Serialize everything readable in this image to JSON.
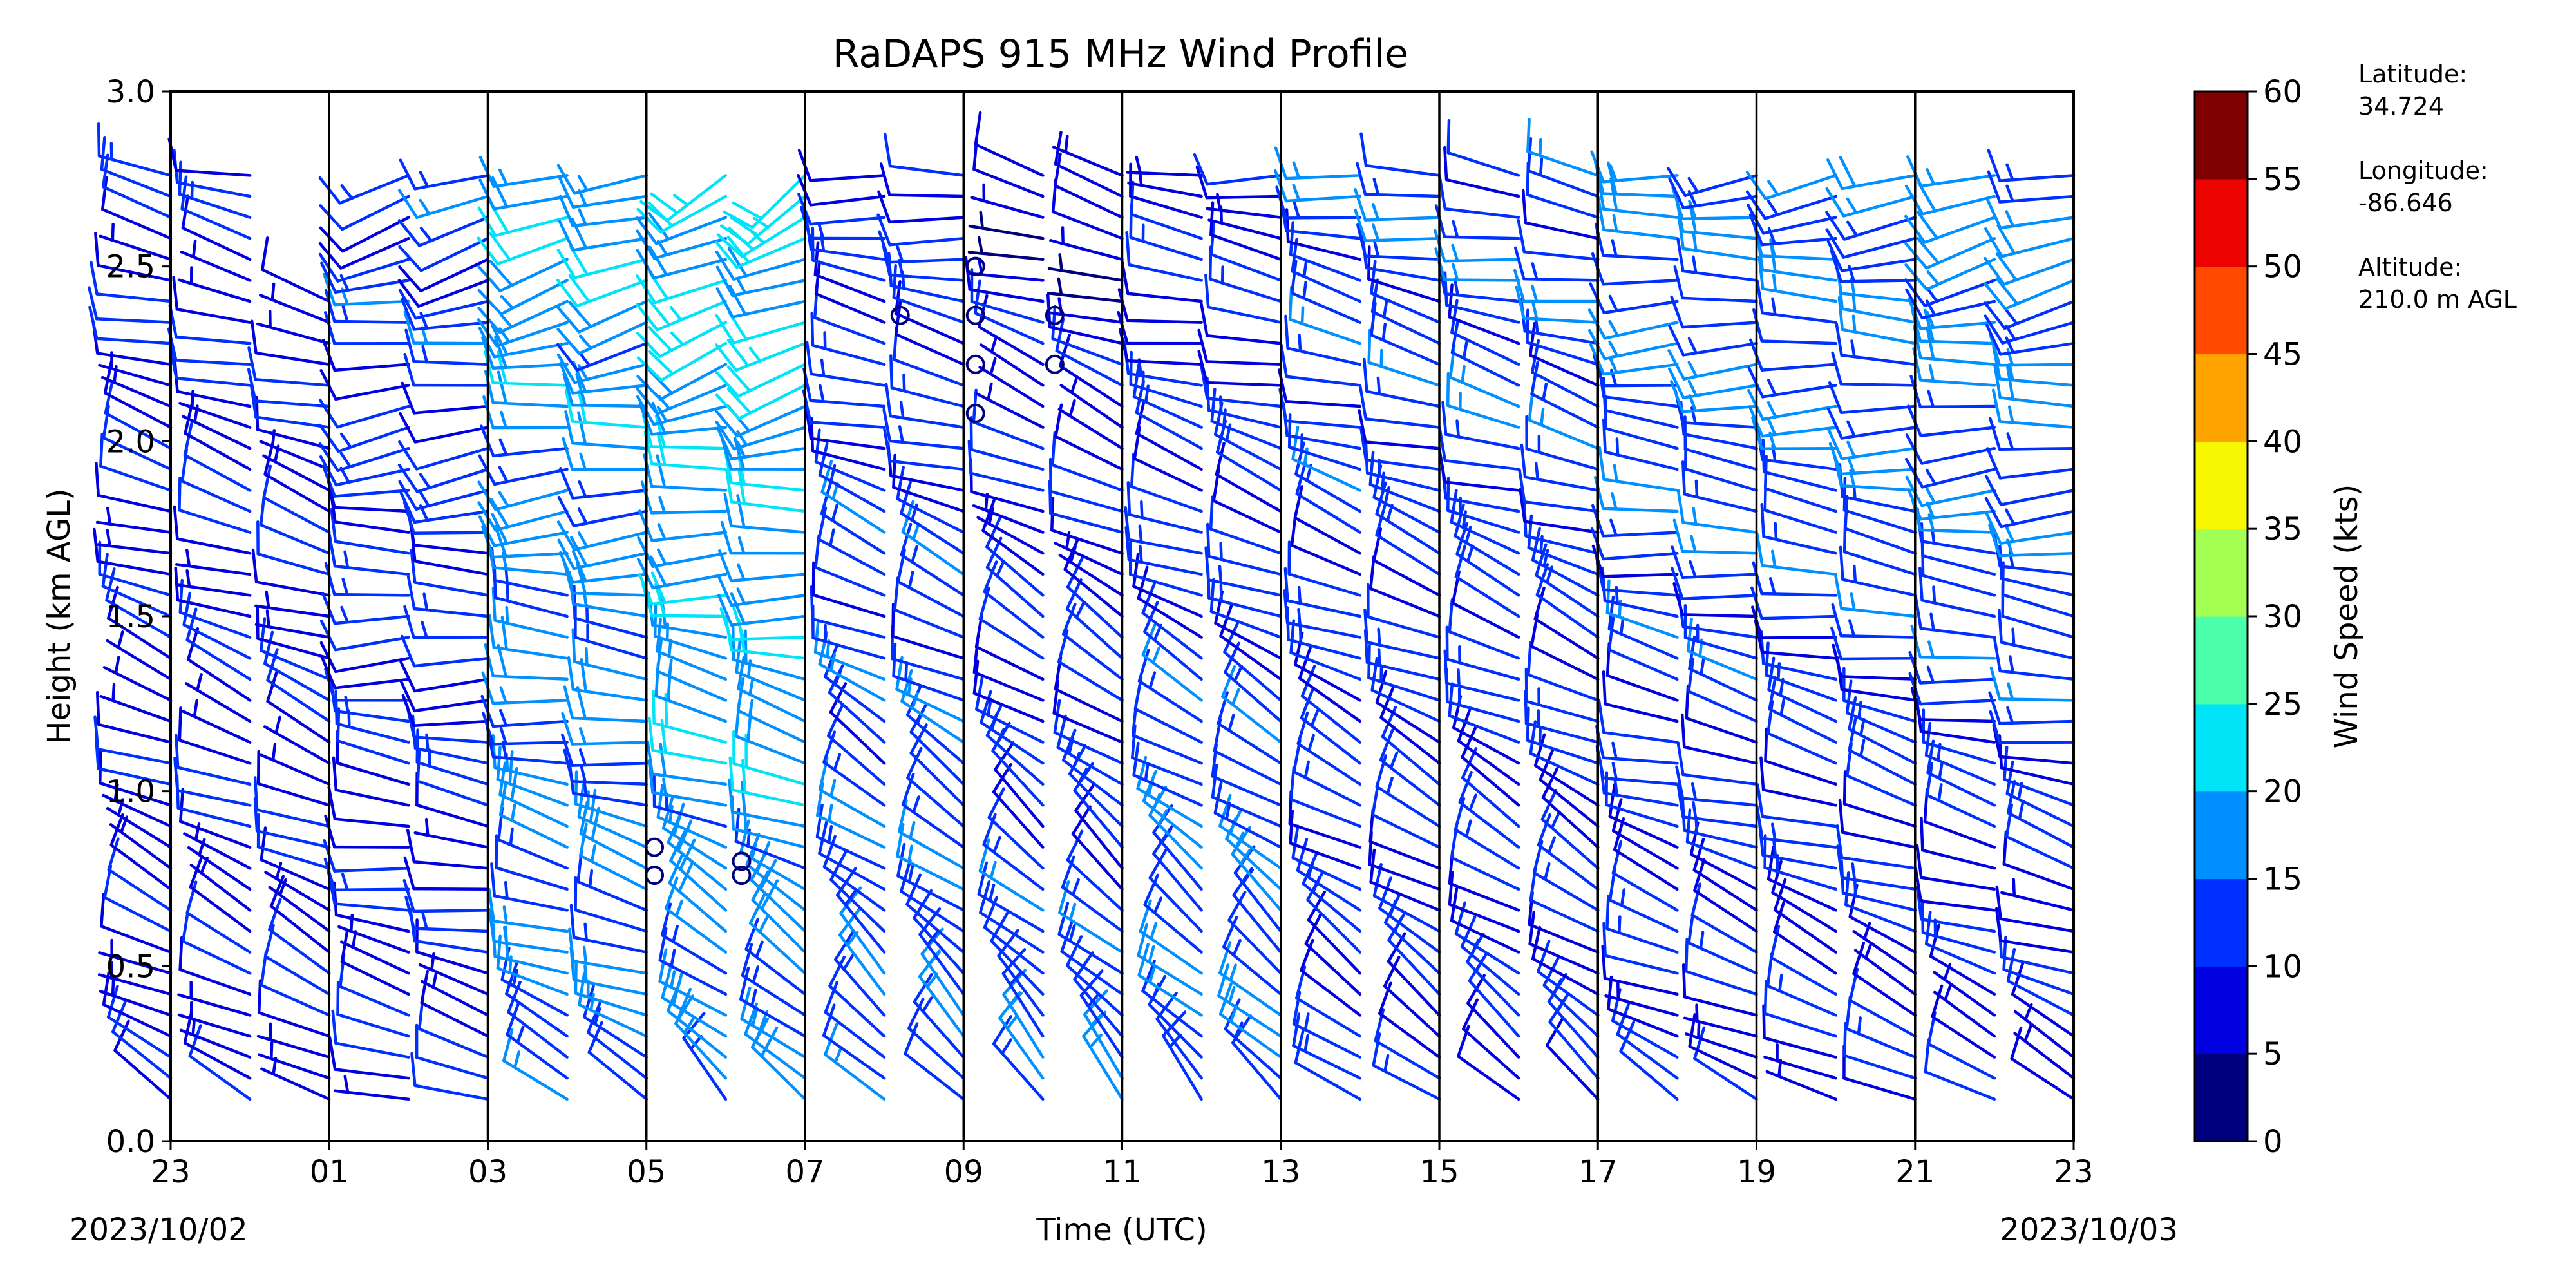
{
  "chart_data": {
    "type": "wind-barb-profile",
    "title": "RaDAPS 915 MHz Wind Profile",
    "xlabel": "Time (UTC)",
    "ylabel": "Height (km AGL)",
    "colorbar_label": "Wind Speed (kts)",
    "start_date_label": "2023/10/02",
    "end_date_label": "2023/10/03",
    "x_tick_labels": [
      "23",
      "01",
      "03",
      "05",
      "07",
      "09",
      "11",
      "13",
      "15",
      "17",
      "19",
      "21",
      "23"
    ],
    "x_range_hours": [
      23,
      47
    ],
    "ylim": [
      0.0,
      3.0
    ],
    "y_ticks": [
      "0.0",
      "0.5",
      "1.0",
      "1.5",
      "2.0",
      "2.5",
      "3.0"
    ],
    "colorbar_ticks": [
      "0",
      "5",
      "10",
      "15",
      "20",
      "25",
      "30",
      "35",
      "40",
      "45",
      "50",
      "55",
      "60"
    ],
    "colorbar_colors": [
      "#00007f",
      "#0000e0",
      "#0030ff",
      "#0090ff",
      "#00e4f8",
      "#4cffaa",
      "#a4ff53",
      "#f6f700",
      "#ffa300",
      "#ff4a00",
      "#ed0400",
      "#7f0000"
    ],
    "profile_times_hours": [
      23,
      24,
      25,
      26,
      27,
      28,
      29,
      30,
      31,
      32,
      33,
      34,
      35,
      36,
      37,
      38,
      39,
      40,
      41,
      42,
      43,
      44,
      45,
      46,
      47
    ],
    "range_gates_km": {
      "start": 0.12,
      "step": 0.06,
      "count": 45
    },
    "max_height_km_by_profile": [
      2.95,
      2.95,
      2.45,
      2.95,
      2.95,
      2.95,
      2.95,
      2.95,
      2.95,
      2.95,
      2.95,
      2.95,
      2.95,
      2.95,
      2.95,
      2.95,
      2.95,
      2.95,
      2.95,
      2.95,
      2.95,
      2.95,
      2.95,
      2.95,
      2.95
    ],
    "calm_markers": [
      {
        "time_hour": 29.1,
        "height_km": 0.84
      },
      {
        "time_hour": 29.1,
        "height_km": 0.76
      },
      {
        "time_hour": 30.2,
        "height_km": 0.8
      },
      {
        "time_hour": 30.2,
        "height_km": 0.76
      },
      {
        "time_hour": 32.2,
        "height_km": 2.36
      },
      {
        "time_hour": 33.15,
        "height_km": 2.5
      },
      {
        "time_hour": 33.15,
        "height_km": 2.36
      },
      {
        "time_hour": 33.15,
        "height_km": 2.22
      },
      {
        "time_hour": 33.15,
        "height_km": 2.08
      },
      {
        "time_hour": 34.15,
        "height_km": 2.36
      },
      {
        "time_hour": 34.15,
        "height_km": 2.22
      }
    ],
    "segments": [
      {
        "from_hour": 23,
        "to_hour": 25,
        "low_speed_kts": 8,
        "high_speed_kts": 10,
        "low_dir_deg": 300,
        "high_dir_deg": 280
      },
      {
        "from_hour": 25,
        "to_hour": 27,
        "low_speed_kts": 9,
        "high_speed_kts": 13,
        "low_dir_deg": 290,
        "high_dir_deg": 250
      },
      {
        "from_hour": 27,
        "to_hour": 29,
        "low_speed_kts": 14,
        "high_speed_kts": 19,
        "low_dir_deg": 300,
        "high_dir_deg": 245
      },
      {
        "from_hour": 29,
        "to_hour": 31,
        "low_speed_kts": 16,
        "high_speed_kts": 21,
        "low_dir_deg": 320,
        "high_dir_deg": 230
      },
      {
        "from_hour": 31,
        "to_hour": 33,
        "low_speed_kts": 14,
        "high_speed_kts": 11,
        "low_dir_deg": 320,
        "high_dir_deg": 270
      },
      {
        "from_hour": 33,
        "to_hour": 35,
        "low_speed_kts": 14,
        "high_speed_kts": 6,
        "low_dir_deg": 320,
        "high_dir_deg": 280
      },
      {
        "from_hour": 35,
        "to_hour": 37,
        "low_speed_kts": 15,
        "high_speed_kts": 9,
        "low_dir_deg": 320,
        "high_dir_deg": 270
      },
      {
        "from_hour": 37,
        "to_hour": 41,
        "low_speed_kts": 11,
        "high_speed_kts": 13,
        "low_dir_deg": 310,
        "high_dir_deg": 275
      },
      {
        "from_hour": 41,
        "to_hour": 45,
        "low_speed_kts": 9,
        "high_speed_kts": 16,
        "low_dir_deg": 300,
        "high_dir_deg": 260
      },
      {
        "from_hour": 45,
        "to_hour": 47,
        "low_speed_kts": 8,
        "high_speed_kts": 18,
        "low_dir_deg": 300,
        "high_dir_deg": 250
      }
    ]
  },
  "station_info": {
    "latitude_label": "Latitude:",
    "latitude_value": "34.724",
    "longitude_label": "Longitude:",
    "longitude_value": "-86.646",
    "altitude_label": "Altitude:",
    "altitude_value": "210.0 m AGL"
  }
}
